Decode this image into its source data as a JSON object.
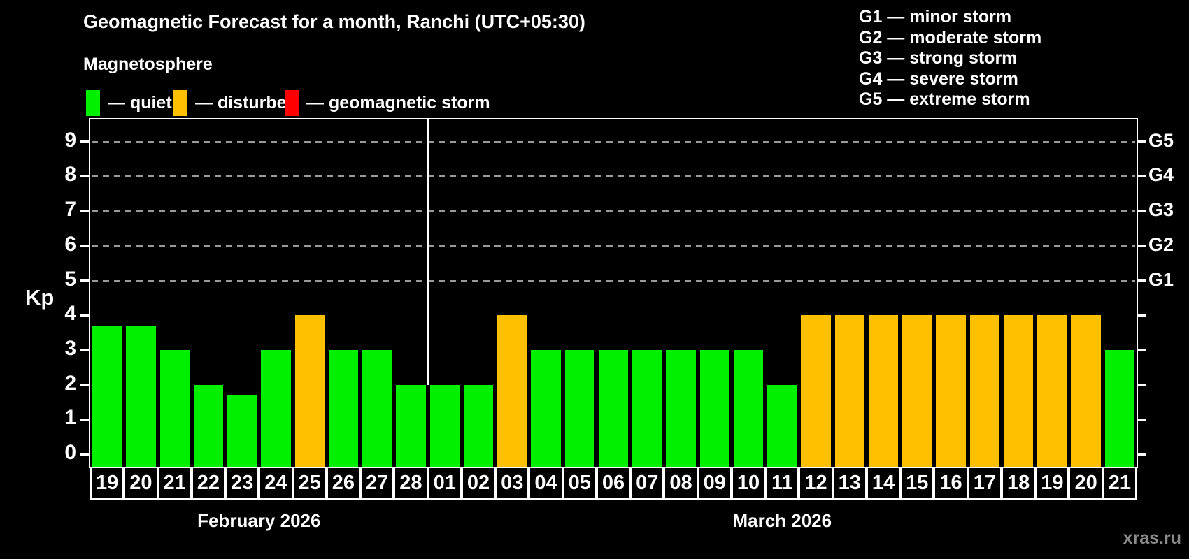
{
  "header": {
    "title": "Geomagnetic Forecast for a month, Ranchi (UTC+05:30)",
    "subtitle": "Magnetosphere"
  },
  "legend": {
    "items": [
      {
        "label": "quiet",
        "color": "#00F000",
        "x": 123
      },
      {
        "label": "disturbed",
        "color": "#FFC000",
        "x": 248
      },
      {
        "label": "geomagnetic storm",
        "color": "#FF0000",
        "x": 407
      }
    ]
  },
  "g_legend": [
    {
      "code": "G1",
      "desc": "minor storm"
    },
    {
      "code": "G2",
      "desc": "moderate storm"
    },
    {
      "code": "G3",
      "desc": "strong storm"
    },
    {
      "code": "G4",
      "desc": "severe storm"
    },
    {
      "code": "G5",
      "desc": "extreme storm"
    }
  ],
  "watermark": "xras.ru",
  "colors": {
    "quiet": "#00F000",
    "disturbed": "#FFC000",
    "storm": "#FF0000",
    "grid": "#999999",
    "axis": "#FFFFFF"
  },
  "chart_data": {
    "type": "bar",
    "ylabel": "Kp",
    "ylim": [
      0,
      9
    ],
    "yticks": [
      0,
      1,
      2,
      3,
      4,
      5,
      6,
      7,
      8,
      9
    ],
    "gridlines_at": [
      5,
      6,
      7,
      8,
      9
    ],
    "right_axis": [
      {
        "kp": 5,
        "label": "G1"
      },
      {
        "kp": 6,
        "label": "G2"
      },
      {
        "kp": 7,
        "label": "G3"
      },
      {
        "kp": 8,
        "label": "G4"
      },
      {
        "kp": 9,
        "label": "G5"
      }
    ],
    "months": [
      {
        "label": "February 2026",
        "count": 10
      },
      {
        "label": "March 2026",
        "count": 21
      }
    ],
    "bars": [
      {
        "month": "February 2026",
        "day": "19",
        "value": 3.7,
        "status": "quiet"
      },
      {
        "month": "February 2026",
        "day": "20",
        "value": 3.7,
        "status": "quiet"
      },
      {
        "month": "February 2026",
        "day": "21",
        "value": 3.0,
        "status": "quiet"
      },
      {
        "month": "February 2026",
        "day": "22",
        "value": 2.0,
        "status": "quiet"
      },
      {
        "month": "February 2026",
        "day": "23",
        "value": 1.7,
        "status": "quiet"
      },
      {
        "month": "February 2026",
        "day": "24",
        "value": 3.0,
        "status": "quiet"
      },
      {
        "month": "February 2026",
        "day": "25",
        "value": 4.0,
        "status": "disturbed"
      },
      {
        "month": "February 2026",
        "day": "26",
        "value": 3.0,
        "status": "quiet"
      },
      {
        "month": "February 2026",
        "day": "27",
        "value": 3.0,
        "status": "quiet"
      },
      {
        "month": "February 2026",
        "day": "28",
        "value": 2.0,
        "status": "quiet"
      },
      {
        "month": "March 2026",
        "day": "01",
        "value": 2.0,
        "status": "quiet"
      },
      {
        "month": "March 2026",
        "day": "02",
        "value": 2.0,
        "status": "quiet"
      },
      {
        "month": "March 2026",
        "day": "03",
        "value": 4.0,
        "status": "disturbed"
      },
      {
        "month": "March 2026",
        "day": "04",
        "value": 3.0,
        "status": "quiet"
      },
      {
        "month": "March 2026",
        "day": "05",
        "value": 3.0,
        "status": "quiet"
      },
      {
        "month": "March 2026",
        "day": "06",
        "value": 3.0,
        "status": "quiet"
      },
      {
        "month": "March 2026",
        "day": "07",
        "value": 3.0,
        "status": "quiet"
      },
      {
        "month": "March 2026",
        "day": "08",
        "value": 3.0,
        "status": "quiet"
      },
      {
        "month": "March 2026",
        "day": "09",
        "value": 3.0,
        "status": "quiet"
      },
      {
        "month": "March 2026",
        "day": "10",
        "value": 3.0,
        "status": "quiet"
      },
      {
        "month": "March 2026",
        "day": "11",
        "value": 2.0,
        "status": "quiet"
      },
      {
        "month": "March 2026",
        "day": "12",
        "value": 4.0,
        "status": "disturbed"
      },
      {
        "month": "March 2026",
        "day": "13",
        "value": 4.0,
        "status": "disturbed"
      },
      {
        "month": "March 2026",
        "day": "14",
        "value": 4.0,
        "status": "disturbed"
      },
      {
        "month": "March 2026",
        "day": "15",
        "value": 4.0,
        "status": "disturbed"
      },
      {
        "month": "March 2026",
        "day": "16",
        "value": 4.0,
        "status": "disturbed"
      },
      {
        "month": "March 2026",
        "day": "17",
        "value": 4.0,
        "status": "disturbed"
      },
      {
        "month": "March 2026",
        "day": "18",
        "value": 4.0,
        "status": "disturbed"
      },
      {
        "month": "March 2026",
        "day": "19",
        "value": 4.0,
        "status": "disturbed"
      },
      {
        "month": "March 2026",
        "day": "20",
        "value": 4.0,
        "status": "disturbed"
      },
      {
        "month": "March 2026",
        "day": "21",
        "value": 3.0,
        "status": "quiet"
      }
    ]
  }
}
